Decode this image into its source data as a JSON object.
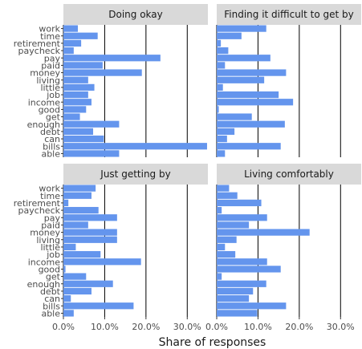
{
  "chart_data": {
    "type": "bar",
    "orientation": "horizontal",
    "xlabel": "Share of responses",
    "ylabel": "",
    "xlim": [
      0,
      0.35
    ],
    "x_ticks": [
      0,
      0.1,
      0.2,
      0.3
    ],
    "x_tick_labels": [
      "0.0%",
      "10.0%",
      "20.0%",
      "30.0%"
    ],
    "grid": true,
    "bar_color": "#6495ED",
    "strip_color": "#d9d9d9",
    "categories": [
      "work",
      "time",
      "retirement",
      "paycheck",
      "pay",
      "paid",
      "money",
      "living",
      "little",
      "job",
      "income",
      "good",
      "get",
      "enough",
      "debt",
      "can",
      "bills",
      "able"
    ],
    "panels": [
      {
        "title": "Doing okay",
        "values": [
          0.035,
          0.083,
          0.043,
          0.025,
          0.235,
          0.095,
          0.19,
          0.06,
          0.075,
          0.06,
          0.068,
          0.055,
          0.04,
          0.135,
          0.072,
          0.098,
          0.348,
          0.135
        ]
      },
      {
        "title": "Finding it difficult to get by",
        "values": [
          0.12,
          0.06,
          0.01,
          0.028,
          0.13,
          0.02,
          0.168,
          0.115,
          0.015,
          0.15,
          0.185,
          0.005,
          0.085,
          0.165,
          0.043,
          0.025,
          0.155,
          0.02
        ]
      },
      {
        "title": "Just getting by",
        "values": [
          0.078,
          0.068,
          0.012,
          0.085,
          0.13,
          0.06,
          0.13,
          0.13,
          0.03,
          0.09,
          0.188,
          0.005,
          0.055,
          0.12,
          0.068,
          0.018,
          0.17,
          0.025
        ]
      },
      {
        "title": "Living comfortably",
        "values": [
          0.03,
          0.05,
          0.108,
          0.012,
          0.122,
          0.078,
          0.225,
          0.048,
          0.02,
          0.045,
          0.122,
          0.155,
          0.012,
          0.12,
          0.088,
          0.078,
          0.168,
          0.098
        ]
      }
    ]
  }
}
